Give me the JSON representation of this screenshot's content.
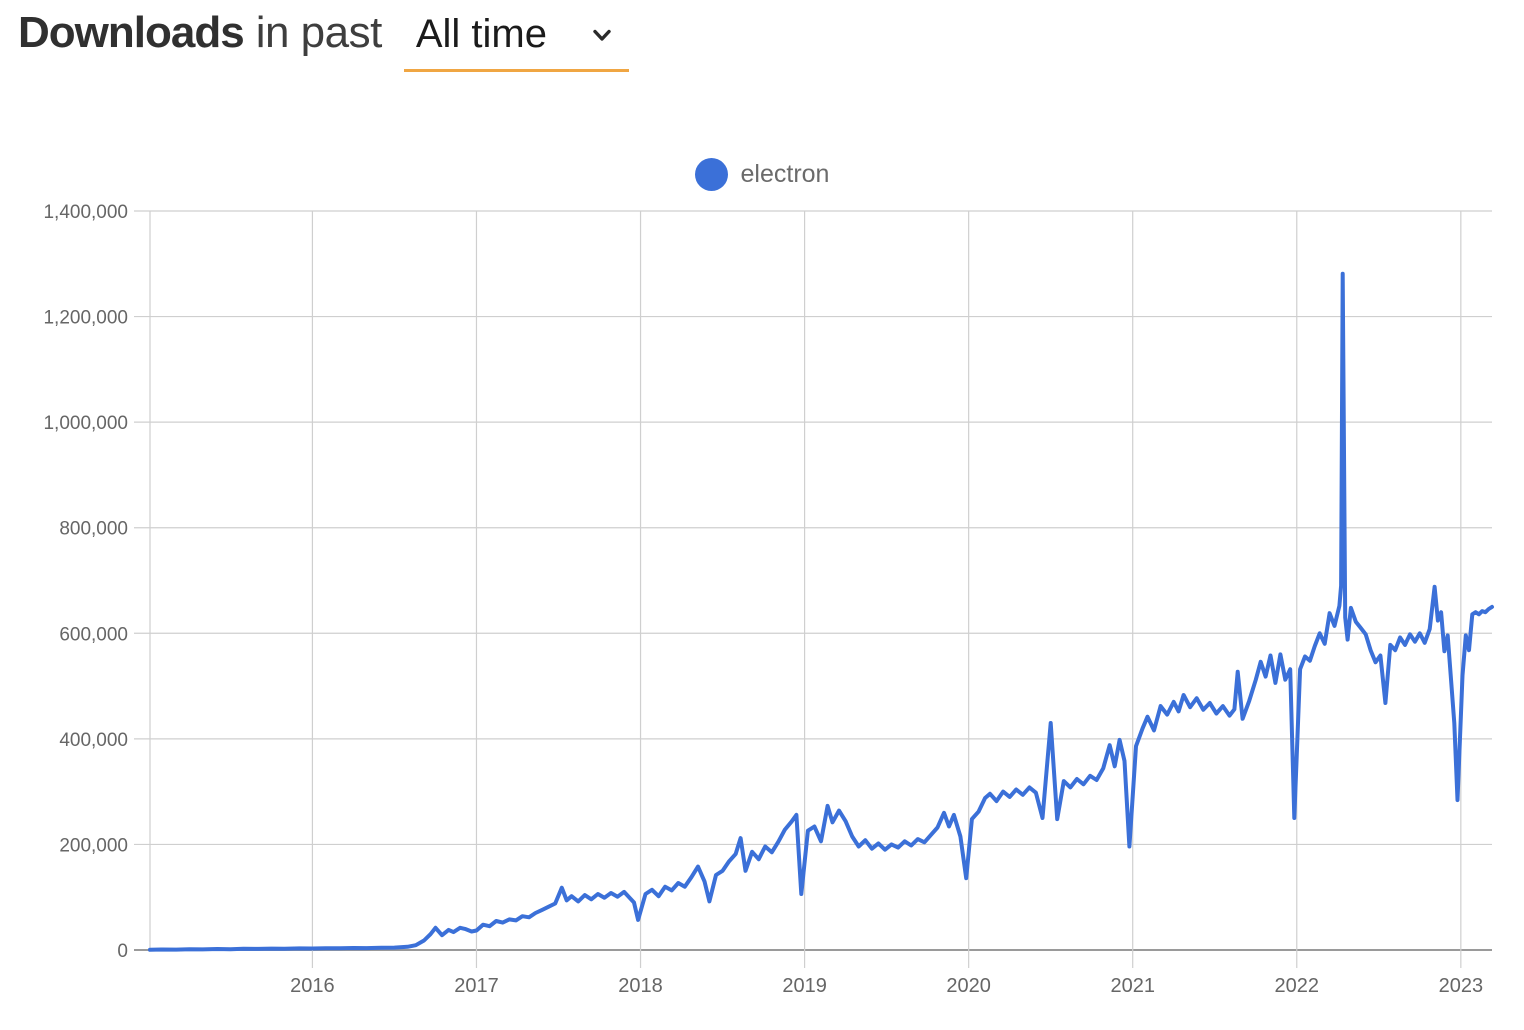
{
  "header": {
    "title": "Downloads",
    "subtitle": "in past",
    "period_label": "All time"
  },
  "legend": [
    {
      "name": "electron",
      "color": "#3b70d8"
    }
  ],
  "colors": {
    "accent_underline": "#f0a643",
    "grid": "#cfcfcf",
    "axis_baseline": "#9a9a9a",
    "tick_text": "#666666",
    "series_blue": "#3b70d8"
  },
  "chart_data": {
    "type": "line",
    "title": "Downloads in past All time",
    "xlabel": "",
    "ylabel": "",
    "grid": true,
    "legend_position": "top-center",
    "xlim": [
      2015.01,
      2023.19
    ],
    "ylim": [
      0,
      1400000
    ],
    "x_ticks": [
      2016,
      2017,
      2018,
      2019,
      2020,
      2021,
      2022,
      2023
    ],
    "y_ticks": [
      0,
      200000,
      400000,
      600000,
      800000,
      1000000,
      1200000,
      1400000
    ],
    "y_tick_labels": [
      "0",
      "200,000",
      "400,000",
      "600,000",
      "800,000",
      "1,000,000",
      "1,200,000",
      "1,400,000"
    ],
    "series": [
      {
        "name": "electron",
        "color": "#3b70d8",
        "points": [
          [
            2015.01,
            300
          ],
          [
            2015.08,
            900
          ],
          [
            2015.17,
            700
          ],
          [
            2015.25,
            1300
          ],
          [
            2015.33,
            1100
          ],
          [
            2015.42,
            1800
          ],
          [
            2015.5,
            1500
          ],
          [
            2015.58,
            2200
          ],
          [
            2015.67,
            2000
          ],
          [
            2015.75,
            2600
          ],
          [
            2015.83,
            2400
          ],
          [
            2015.92,
            3000
          ],
          [
            2016.0,
            2800
          ],
          [
            2016.08,
            3400
          ],
          [
            2016.17,
            3200
          ],
          [
            2016.25,
            3800
          ],
          [
            2016.33,
            3600
          ],
          [
            2016.42,
            4200
          ],
          [
            2016.5,
            4600
          ],
          [
            2016.58,
            6000
          ],
          [
            2016.63,
            9000
          ],
          [
            2016.68,
            18000
          ],
          [
            2016.72,
            30000
          ],
          [
            2016.75,
            42000
          ],
          [
            2016.79,
            28000
          ],
          [
            2016.83,
            38000
          ],
          [
            2016.86,
            34000
          ],
          [
            2016.9,
            42000
          ],
          [
            2016.93,
            40000
          ],
          [
            2016.97,
            35000
          ],
          [
            2017.0,
            37000
          ],
          [
            2017.04,
            48000
          ],
          [
            2017.08,
            45000
          ],
          [
            2017.12,
            55000
          ],
          [
            2017.16,
            52000
          ],
          [
            2017.2,
            58000
          ],
          [
            2017.24,
            56000
          ],
          [
            2017.28,
            64000
          ],
          [
            2017.32,
            62000
          ],
          [
            2017.36,
            70000
          ],
          [
            2017.4,
            76000
          ],
          [
            2017.44,
            82000
          ],
          [
            2017.48,
            88000
          ],
          [
            2017.52,
            118000
          ],
          [
            2017.55,
            94000
          ],
          [
            2017.58,
            102000
          ],
          [
            2017.62,
            92000
          ],
          [
            2017.66,
            104000
          ],
          [
            2017.7,
            96000
          ],
          [
            2017.74,
            106000
          ],
          [
            2017.78,
            99000
          ],
          [
            2017.82,
            108000
          ],
          [
            2017.86,
            101000
          ],
          [
            2017.9,
            110000
          ],
          [
            2017.93,
            100000
          ],
          [
            2017.96,
            90000
          ],
          [
            2017.985,
            57000
          ],
          [
            2018.03,
            106000
          ],
          [
            2018.07,
            114000
          ],
          [
            2018.11,
            102000
          ],
          [
            2018.15,
            120000
          ],
          [
            2018.19,
            113000
          ],
          [
            2018.23,
            127000
          ],
          [
            2018.27,
            120000
          ],
          [
            2018.31,
            138000
          ],
          [
            2018.35,
            158000
          ],
          [
            2018.39,
            130000
          ],
          [
            2018.42,
            92000
          ],
          [
            2018.46,
            142000
          ],
          [
            2018.5,
            150000
          ],
          [
            2018.54,
            168000
          ],
          [
            2018.58,
            182000
          ],
          [
            2018.61,
            212000
          ],
          [
            2018.64,
            150000
          ],
          [
            2018.68,
            186000
          ],
          [
            2018.72,
            172000
          ],
          [
            2018.76,
            196000
          ],
          [
            2018.8,
            185000
          ],
          [
            2018.84,
            205000
          ],
          [
            2018.88,
            228000
          ],
          [
            2018.92,
            243000
          ],
          [
            2018.95,
            256000
          ],
          [
            2018.98,
            106000
          ],
          [
            2019.02,
            226000
          ],
          [
            2019.06,
            234000
          ],
          [
            2019.1,
            206000
          ],
          [
            2019.14,
            273000
          ],
          [
            2019.17,
            242000
          ],
          [
            2019.21,
            264000
          ],
          [
            2019.25,
            244000
          ],
          [
            2019.29,
            215000
          ],
          [
            2019.33,
            196000
          ],
          [
            2019.37,
            208000
          ],
          [
            2019.41,
            192000
          ],
          [
            2019.45,
            202000
          ],
          [
            2019.49,
            190000
          ],
          [
            2019.53,
            200000
          ],
          [
            2019.57,
            194000
          ],
          [
            2019.61,
            206000
          ],
          [
            2019.65,
            198000
          ],
          [
            2019.69,
            210000
          ],
          [
            2019.73,
            204000
          ],
          [
            2019.77,
            218000
          ],
          [
            2019.81,
            232000
          ],
          [
            2019.85,
            260000
          ],
          [
            2019.88,
            234000
          ],
          [
            2019.91,
            256000
          ],
          [
            2019.95,
            215000
          ],
          [
            2019.985,
            136000
          ],
          [
            2020.02,
            248000
          ],
          [
            2020.06,
            262000
          ],
          [
            2020.1,
            288000
          ],
          [
            2020.13,
            296000
          ],
          [
            2020.17,
            282000
          ],
          [
            2020.21,
            300000
          ],
          [
            2020.25,
            290000
          ],
          [
            2020.29,
            304000
          ],
          [
            2020.33,
            294000
          ],
          [
            2020.37,
            308000
          ],
          [
            2020.41,
            298000
          ],
          [
            2020.45,
            250000
          ],
          [
            2020.5,
            430000
          ],
          [
            2020.54,
            248000
          ],
          [
            2020.58,
            320000
          ],
          [
            2020.62,
            308000
          ],
          [
            2020.66,
            324000
          ],
          [
            2020.7,
            314000
          ],
          [
            2020.74,
            330000
          ],
          [
            2020.78,
            322000
          ],
          [
            2020.82,
            344000
          ],
          [
            2020.86,
            388000
          ],
          [
            2020.89,
            348000
          ],
          [
            2020.92,
            398000
          ],
          [
            2020.95,
            358000
          ],
          [
            2020.98,
            196000
          ],
          [
            2021.02,
            386000
          ],
          [
            2021.06,
            420000
          ],
          [
            2021.09,
            442000
          ],
          [
            2021.13,
            416000
          ],
          [
            2021.17,
            462000
          ],
          [
            2021.21,
            446000
          ],
          [
            2021.25,
            470000
          ],
          [
            2021.28,
            452000
          ],
          [
            2021.31,
            483000
          ],
          [
            2021.35,
            460000
          ],
          [
            2021.39,
            477000
          ],
          [
            2021.43,
            455000
          ],
          [
            2021.47,
            468000
          ],
          [
            2021.51,
            448000
          ],
          [
            2021.55,
            462000
          ],
          [
            2021.59,
            444000
          ],
          [
            2021.62,
            456000
          ],
          [
            2021.64,
            527000
          ],
          [
            2021.67,
            438000
          ],
          [
            2021.71,
            472000
          ],
          [
            2021.75,
            512000
          ],
          [
            2021.78,
            546000
          ],
          [
            2021.81,
            518000
          ],
          [
            2021.84,
            558000
          ],
          [
            2021.87,
            506000
          ],
          [
            2021.9,
            560000
          ],
          [
            2021.93,
            512000
          ],
          [
            2021.96,
            532000
          ],
          [
            2021.985,
            250000
          ],
          [
            2022.02,
            532000
          ],
          [
            2022.05,
            556000
          ],
          [
            2022.08,
            548000
          ],
          [
            2022.11,
            576000
          ],
          [
            2022.14,
            600000
          ],
          [
            2022.17,
            580000
          ],
          [
            2022.2,
            638000
          ],
          [
            2022.23,
            614000
          ],
          [
            2022.26,
            652000
          ],
          [
            2022.27,
            690000
          ],
          [
            2022.28,
            1281000
          ],
          [
            2022.295,
            630000
          ],
          [
            2022.31,
            588000
          ],
          [
            2022.33,
            648000
          ],
          [
            2022.36,
            622000
          ],
          [
            2022.39,
            610000
          ],
          [
            2022.42,
            598000
          ],
          [
            2022.45,
            568000
          ],
          [
            2022.48,
            545000
          ],
          [
            2022.51,
            558000
          ],
          [
            2022.54,
            468000
          ],
          [
            2022.57,
            578000
          ],
          [
            2022.6,
            568000
          ],
          [
            2022.63,
            592000
          ],
          [
            2022.66,
            578000
          ],
          [
            2022.69,
            598000
          ],
          [
            2022.72,
            584000
          ],
          [
            2022.75,
            600000
          ],
          [
            2022.78,
            582000
          ],
          [
            2022.81,
            608000
          ],
          [
            2022.84,
            688000
          ],
          [
            2022.86,
            624000
          ],
          [
            2022.88,
            640000
          ],
          [
            2022.9,
            566000
          ],
          [
            2022.92,
            596000
          ],
          [
            2022.96,
            430000
          ],
          [
            2022.98,
            284000
          ],
          [
            2023.01,
            520000
          ],
          [
            2023.03,
            596000
          ],
          [
            2023.05,
            568000
          ],
          [
            2023.07,
            636000
          ],
          [
            2023.09,
            640000
          ],
          [
            2023.11,
            636000
          ],
          [
            2023.13,
            642000
          ],
          [
            2023.15,
            640000
          ],
          [
            2023.17,
            646000
          ],
          [
            2023.19,
            650000
          ]
        ]
      }
    ]
  }
}
